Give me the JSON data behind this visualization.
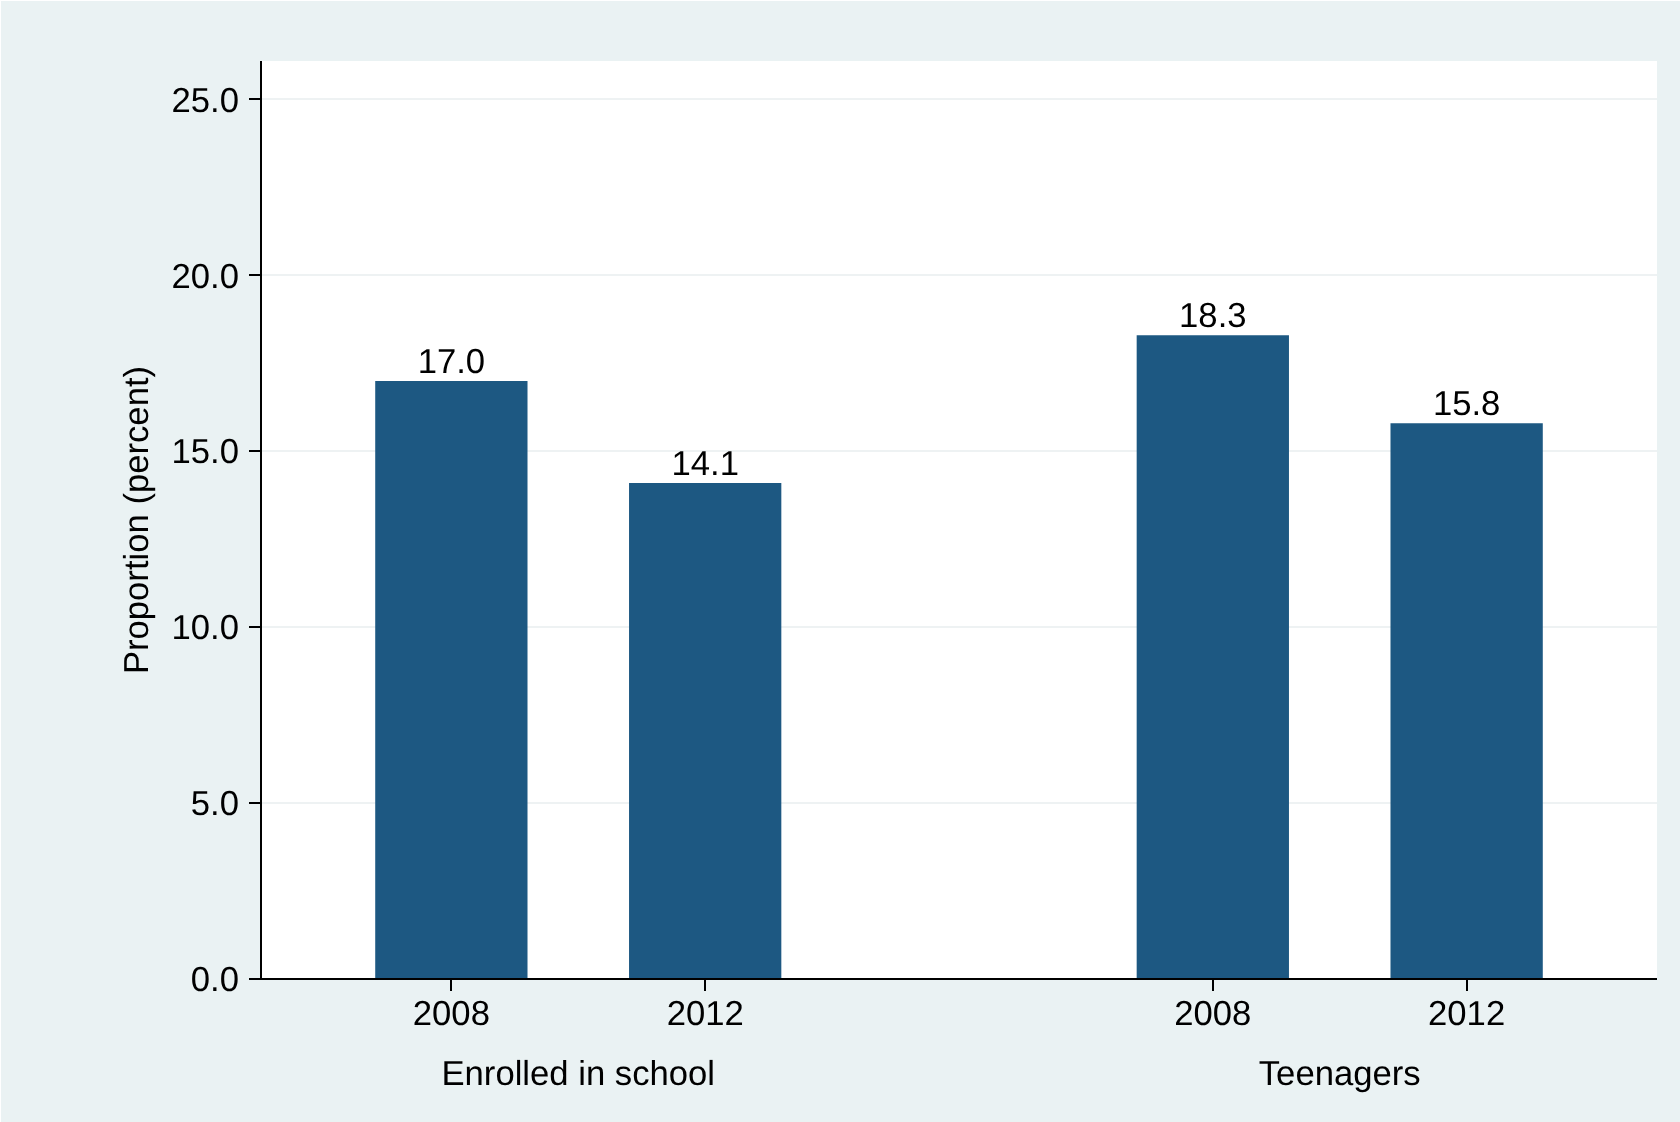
{
  "chart_data": {
    "type": "bar",
    "ylabel": "Proportion (percent)",
    "categories": [
      "2008",
      "2012",
      null,
      "2008",
      "2012"
    ],
    "values": [
      17.0,
      14.1,
      null,
      18.3,
      15.8
    ],
    "value_labels": [
      "17.0",
      "14.1",
      null,
      "18.3",
      "15.8"
    ],
    "color": "#1d5882",
    "annotations": [
      "Enrolled in school",
      "Teenagers"
    ],
    "ylim": [
      0,
      26.1
    ],
    "yticks": [
      {
        "value": 0,
        "label": "0.0"
      },
      {
        "value": 5,
        "label": "5.0"
      },
      {
        "value": 10,
        "label": "10.0"
      },
      {
        "value": 15,
        "label": "15.0"
      },
      {
        "value": 20,
        "label": "20.0"
      },
      {
        "value": 25,
        "label": "25.0"
      }
    ],
    "grid": "y"
  }
}
